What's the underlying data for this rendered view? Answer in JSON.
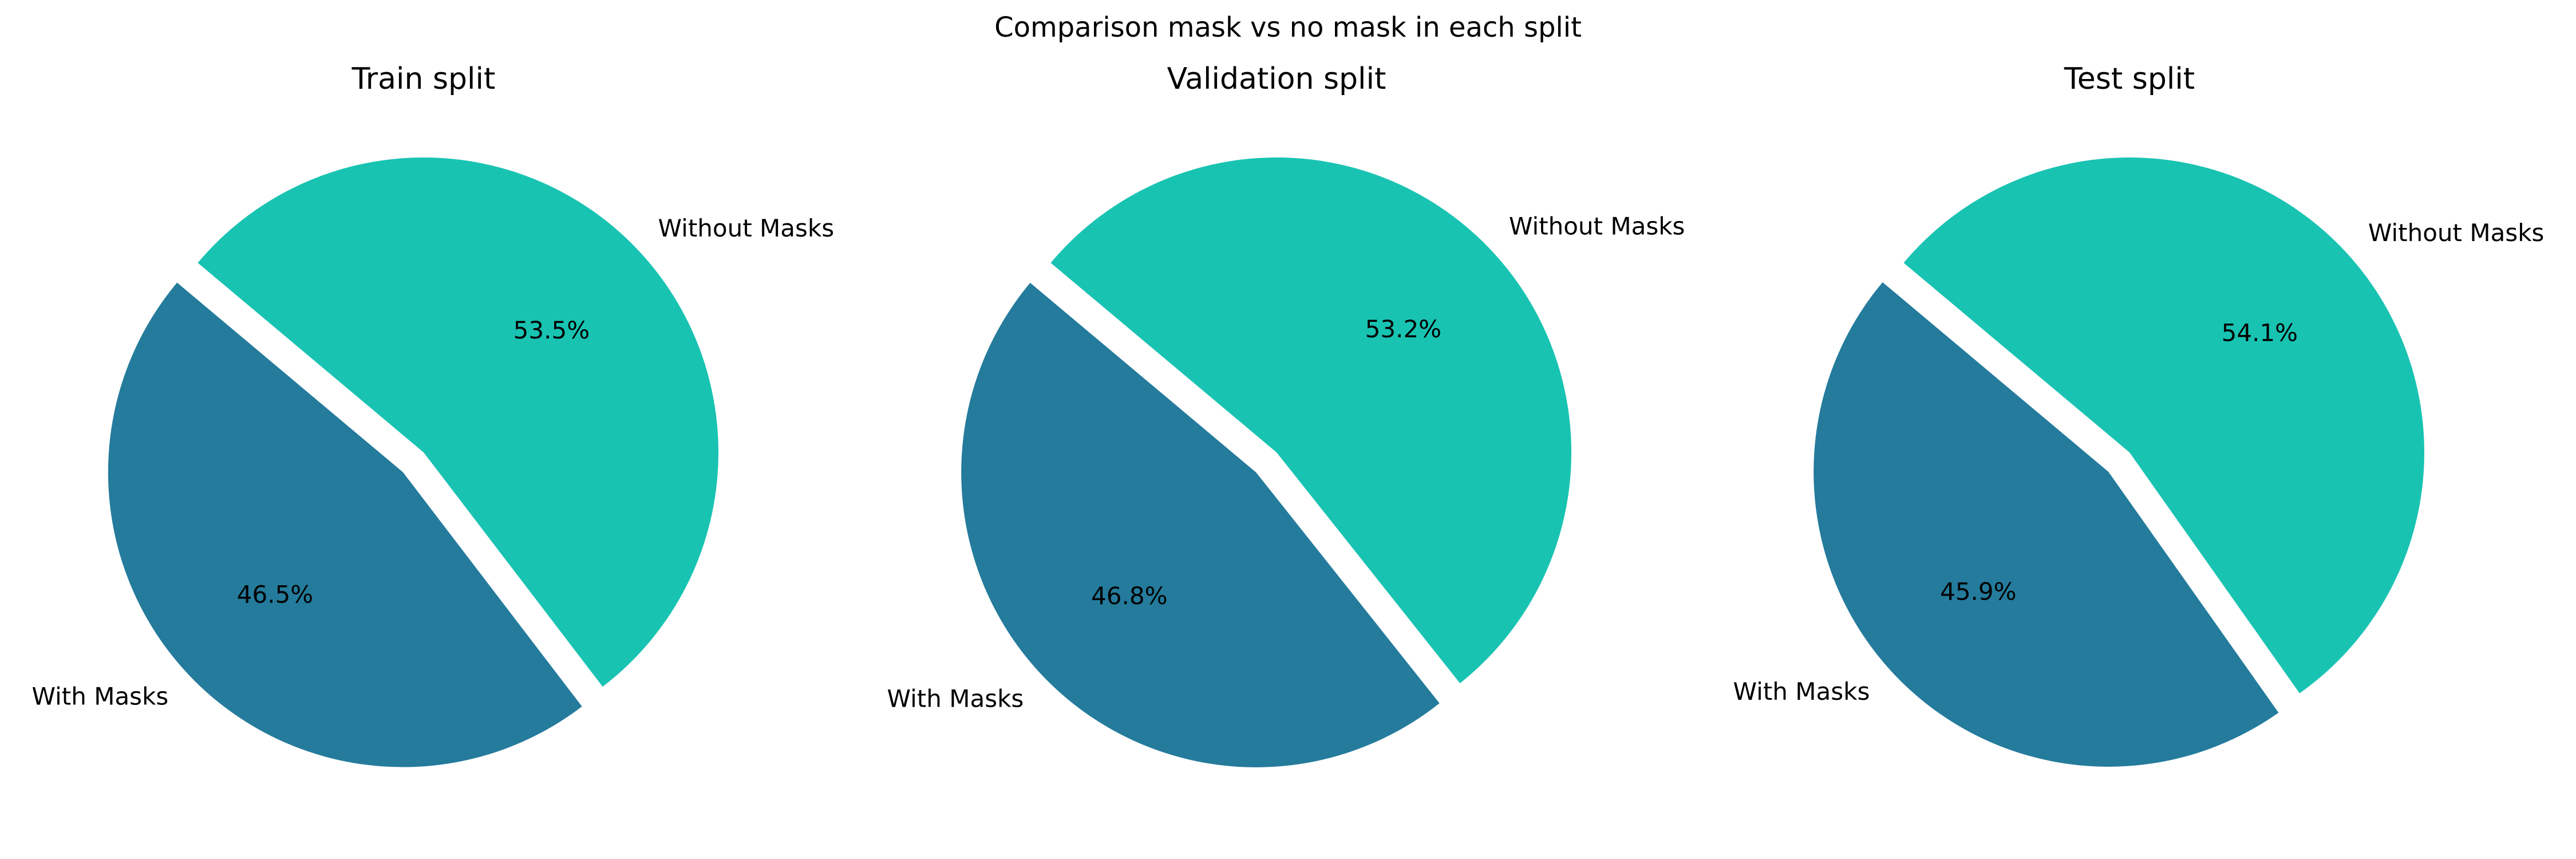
{
  "figure_title": "Comparison mask vs no mask in each split",
  "chart_data": [
    {
      "type": "pie",
      "title": "Train split",
      "labels": [
        "With Masks",
        "Without Masks"
      ],
      "values": [
        46.5,
        53.5
      ],
      "value_labels": [
        "46.5%",
        "53.5%"
      ],
      "colors": [
        "#247b9c",
        "#19c3b2"
      ],
      "exploded": [
        "With Masks"
      ]
    },
    {
      "type": "pie",
      "title": "Validation split",
      "labels": [
        "With Masks",
        "Without Masks"
      ],
      "values": [
        46.8,
        53.2
      ],
      "value_labels": [
        "46.8%",
        "53.2%"
      ],
      "colors": [
        "#247b9c",
        "#19c3b2"
      ],
      "exploded": [
        "With Masks"
      ]
    },
    {
      "type": "pie",
      "title": "Test split",
      "labels": [
        "With Masks",
        "Without Masks"
      ],
      "values": [
        45.9,
        54.1
      ],
      "value_labels": [
        "45.9%",
        "54.1%"
      ],
      "colors": [
        "#247b9c",
        "#19c3b2"
      ],
      "exploded": [
        "With Masks"
      ]
    }
  ]
}
